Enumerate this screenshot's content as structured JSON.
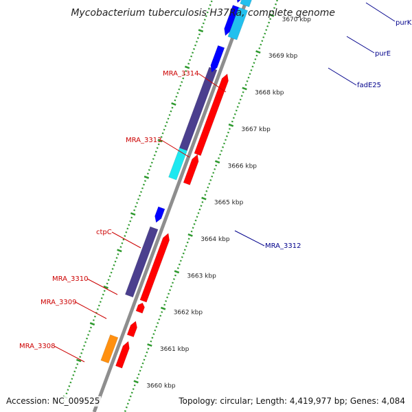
{
  "title": "Mycobacterium tuberculosis H37Ra, complete genome",
  "footer": {
    "accession": "Accession: NC_009525",
    "summary": "Topology: circular; Length: 4,419,977 bp; Genes: 4,084"
  },
  "colors": {
    "background": "#ffffff",
    "backbone": "#8e8e8e",
    "tick": "#2f9a2f",
    "cds_forward": "#ff0000",
    "cds_reverse": "#0000ff",
    "gene_purple": "#4b3f8e",
    "gene_cyan": "#1ee8f0",
    "gene_lightblue": "#22c0ee",
    "gene_orange": "#ff9010",
    "label_forward": "#cc0000",
    "label_reverse": "#00008b"
  },
  "scale": {
    "unit": "kbp",
    "ticks": [
      {
        "kbp": 3660,
        "label": "3660 kbp"
      },
      {
        "kbp": 3661,
        "label": "3661 kbp"
      },
      {
        "kbp": 3662,
        "label": "3662 kbp"
      },
      {
        "kbp": 3663,
        "label": "3663 kbp"
      },
      {
        "kbp": 3664,
        "label": "3664 kbp"
      },
      {
        "kbp": 3665,
        "label": "3665 kbp"
      },
      {
        "kbp": 3666,
        "label": "3666 kbp"
      },
      {
        "kbp": 3667,
        "label": "3667 kbp"
      },
      {
        "kbp": 3668,
        "label": "3668 kbp"
      },
      {
        "kbp": 3669,
        "label": "3669 kbp"
      },
      {
        "kbp": 3670,
        "label": "3670 kbp"
      }
    ]
  },
  "features": [
    {
      "name": "MRA_3308",
      "labeled": true,
      "strand": "+",
      "start": 3660.2,
      "end": 3660.9,
      "lanes": [
        {
          "track": "cds",
          "color": "cds_forward"
        },
        {
          "track": "gene",
          "color": "gene_orange"
        }
      ]
    },
    {
      "name": "MRA_3309",
      "labeled": true,
      "strand": "+",
      "start": 3661.05,
      "end": 3661.45,
      "lanes": [
        {
          "track": "cds",
          "color": "cds_forward"
        }
      ]
    },
    {
      "name": "MRA_3310",
      "labeled": true,
      "strand": "+",
      "start": 3661.7,
      "end": 3661.95,
      "lanes": [
        {
          "track": "cds",
          "color": "cds_forward"
        }
      ]
    },
    {
      "name": "ctpC",
      "labeled": true,
      "strand": "+",
      "start": 3662.0,
      "end": 3663.85,
      "lanes": [
        {
          "track": "cds",
          "color": "cds_forward"
        },
        {
          "track": "gene",
          "color": "gene_purple"
        }
      ]
    },
    {
      "name": "MRA_3312",
      "labeled": true,
      "strand": "-",
      "start": 3664.0,
      "end": 3664.4,
      "lanes": [
        {
          "track": "cds",
          "color": "cds_reverse"
        }
      ]
    },
    {
      "name": "MRA_3313",
      "labeled": true,
      "strand": "+",
      "start": 3665.2,
      "end": 3666.0,
      "lanes": [
        {
          "track": "cds",
          "color": "cds_forward"
        },
        {
          "track": "gene",
          "color": "gene_cyan"
        }
      ]
    },
    {
      "name": "MRA_3314",
      "labeled": true,
      "strand": "+",
      "start": 3666.0,
      "end": 3668.2,
      "lanes": [
        {
          "track": "cds",
          "color": "cds_forward"
        },
        {
          "track": "gene",
          "color": "gene_purple"
        }
      ]
    },
    {
      "name": "fadE25",
      "labeled": true,
      "strand": "-",
      "start": 3668.1,
      "end": 3668.8,
      "lanes": [
        {
          "track": "cds",
          "color": "cds_reverse"
        }
      ]
    },
    {
      "name": "purE",
      "labeled": true,
      "strand": "-",
      "start": 3669.1,
      "end": 3669.9,
      "lanes": [
        {
          "track": "cds",
          "color": "cds_reverse"
        },
        {
          "track": "gene",
          "color": "gene_lightblue"
        }
      ]
    },
    {
      "name": "purK",
      "labeled": true,
      "strand": "-",
      "start": 3670.0,
      "end": 3671.2,
      "lanes": [
        {
          "track": "cds",
          "color": "cds_reverse"
        },
        {
          "track": "gene",
          "color": "gene_lightblue"
        }
      ]
    }
  ]
}
